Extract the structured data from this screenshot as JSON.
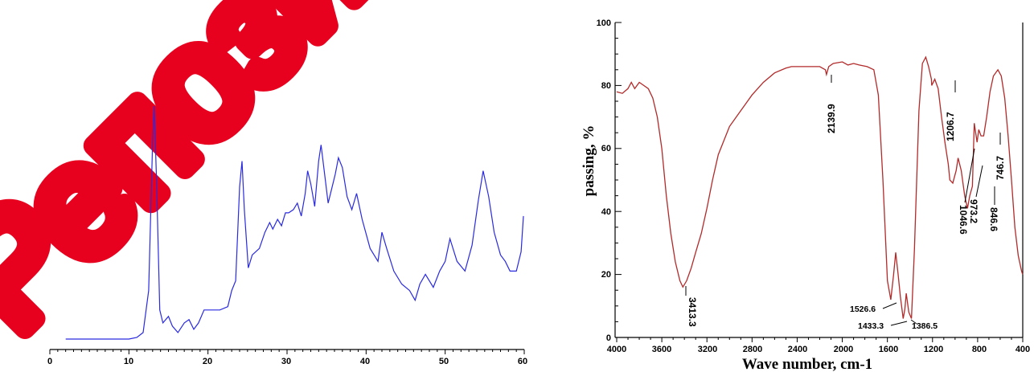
{
  "watermark": {
    "text": "Репозиторий",
    "color": "#e8001f"
  },
  "chart_data": [
    {
      "type": "line",
      "title": "",
      "xlabel": "",
      "ylabel": "",
      "xlim": [
        0,
        60
      ],
      "ylim": [
        0,
        100
      ],
      "y_axis_shown": false,
      "x_ticks": [
        "0",
        "10",
        "20",
        "30",
        "40",
        "50",
        "60"
      ],
      "color": "#2a2adf",
      "series": [
        {
          "x": [
            2,
            10,
            11,
            11.8,
            12.5,
            13.0,
            13.2,
            13.5,
            13.9,
            14.3,
            15.0,
            15.5,
            16.2,
            17.0,
            17.6,
            18.2,
            18.8,
            19.5,
            20.5,
            21.5,
            22.5,
            23.0,
            23.5,
            24.0,
            24.3,
            24.6,
            25.1,
            25.6,
            26.5,
            27.2,
            27.8,
            28.2,
            28.8,
            29.3,
            29.8,
            30.2,
            30.8,
            31.3,
            31.8,
            32.3,
            32.6,
            33.0,
            33.5,
            34.0,
            34.3,
            34.8,
            35.2,
            35.6,
            36.1,
            36.5,
            37.0,
            37.6,
            38.2,
            38.8,
            39.5,
            40.5,
            41.5,
            42.0,
            42.6,
            43.5,
            44.5,
            45.5,
            46.2,
            46.8,
            47.5,
            48.5,
            49.3,
            50.0,
            50.6,
            51.5,
            52.5,
            53.4,
            54.2,
            54.8,
            55.5,
            56.2,
            57.0,
            57.6,
            58.2,
            59.0,
            59.6,
            59.9
          ],
          "y": [
            0,
            0,
            0.5,
            2,
            15,
            61,
            72,
            48,
            9,
            5,
            7,
            4,
            2,
            5,
            6,
            3,
            5,
            9,
            9,
            9,
            10,
            15,
            18,
            47,
            55,
            40,
            22,
            26,
            28,
            33,
            36,
            34,
            37,
            35,
            39,
            39,
            40,
            42,
            38,
            45,
            52,
            48,
            41,
            55,
            60,
            50,
            42,
            46,
            51,
            56,
            53,
            44,
            40,
            45,
            37,
            28,
            24,
            33,
            28,
            21,
            17,
            15,
            12,
            17,
            20,
            16,
            21,
            24,
            31,
            24,
            21,
            29,
            43,
            52,
            44,
            33,
            26,
            24,
            21,
            21,
            27,
            38
          ]
        }
      ]
    },
    {
      "type": "line",
      "title": "",
      "xlabel": "Wave number, cm-1",
      "ylabel": "passing, %",
      "xlim": [
        4000,
        400
      ],
      "ylim": [
        0,
        100
      ],
      "x_ticks": [
        "4000",
        "3600",
        "3200",
        "2800",
        "2400",
        "2000",
        "1600",
        "1200",
        "800",
        "400"
      ],
      "y_ticks": [
        "0",
        "20",
        "40",
        "60",
        "80",
        "100"
      ],
      "color": "#b22a2a",
      "series": [
        {
          "x": [
            4000,
            3950,
            3900,
            3870,
            3840,
            3800,
            3760,
            3720,
            3680,
            3640,
            3600,
            3560,
            3520,
            3480,
            3440,
            3413,
            3380,
            3340,
            3300,
            3250,
            3200,
            3150,
            3100,
            3000,
            2900,
            2800,
            2700,
            2600,
            2500,
            2450,
            2400,
            2300,
            2200,
            2150,
            2139.9,
            2120,
            2080,
            2000,
            1950,
            1900,
            1850,
            1780,
            1720,
            1680,
            1640,
            1600,
            1570,
            1545,
            1526.6,
            1505,
            1485,
            1460,
            1445,
            1433.3,
            1410,
            1386.5,
            1360,
            1320,
            1290,
            1260,
            1235,
            1210,
            1206.7,
            1180,
            1150,
            1120,
            1090,
            1060,
            1046.6,
            1020,
            990,
            973.2,
            945,
            915,
            890,
            870,
            846.6,
            830,
            805,
            790,
            770,
            746.7,
            720,
            690,
            660,
            620,
            590,
            560,
            530,
            500,
            470,
            440,
            410,
            400
          ],
          "y": [
            78,
            77.5,
            79,
            81,
            79,
            81,
            80,
            79,
            76,
            70,
            60,
            45,
            33,
            24,
            18,
            16,
            18,
            22,
            27,
            33,
            41,
            50,
            58,
            67,
            72,
            77,
            81,
            84,
            85.5,
            86,
            86,
            86,
            86,
            85,
            83.5,
            86,
            87,
            87.5,
            86.5,
            87,
            86.5,
            86,
            85,
            77,
            50,
            18,
            12,
            20,
            27,
            20,
            13,
            6,
            9,
            14,
            8,
            6,
            28,
            72,
            87,
            89,
            86,
            82,
            80,
            82,
            79,
            70,
            62,
            55,
            50,
            49,
            53,
            57,
            53,
            45,
            41,
            45,
            48,
            68,
            62,
            66,
            64,
            64,
            70,
            78,
            83,
            85,
            83,
            76,
            64,
            50,
            35,
            26,
            21,
            20
          ]
        }
      ],
      "annotations": [
        "3413.3",
        "2139.9",
        "1526.6",
        "1433.3",
        "1386.5",
        "1206.7",
        "1046.6",
        "973.2",
        "846.6",
        "746.7"
      ]
    }
  ]
}
